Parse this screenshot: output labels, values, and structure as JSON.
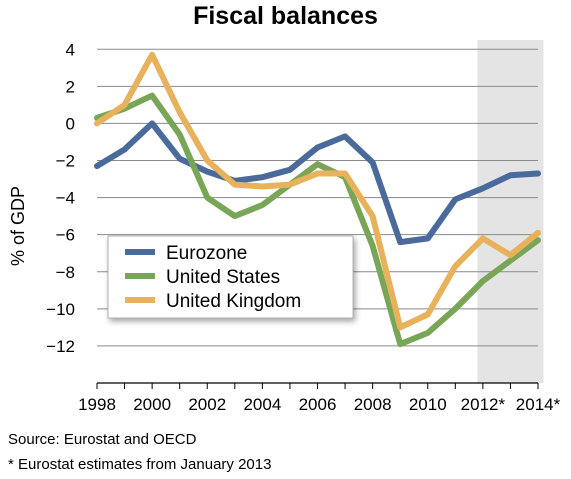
{
  "chart_data": {
    "type": "line",
    "title": "Fiscal balances",
    "ylabel": "% of GDP",
    "xlabel": "",
    "ylim": [
      -14,
      4.5
    ],
    "yticks": [
      4,
      2,
      0,
      -2,
      -4,
      -6,
      -8,
      -10,
      -12
    ],
    "xticks": [
      "1998",
      "2000",
      "2002",
      "2004",
      "2006",
      "2008",
      "2010",
      "2012*",
      "2014*"
    ],
    "x": [
      1998,
      1999,
      2000,
      2001,
      2002,
      2003,
      2004,
      2005,
      2006,
      2007,
      2008,
      2009,
      2010,
      2011,
      2012,
      2013,
      2014
    ],
    "grid": "horizontal",
    "shaded_region": [
      2011.8,
      2014.2
    ],
    "legend_position": "lower-left",
    "series": [
      {
        "name": "Eurozone",
        "color": "#4a6a9c",
        "values": [
          -2.3,
          -1.4,
          0.0,
          -1.9,
          -2.6,
          -3.1,
          -2.9,
          -2.5,
          -1.3,
          -0.7,
          -2.1,
          -6.4,
          -6.2,
          -4.1,
          -3.5,
          -2.8,
          -2.7
        ]
      },
      {
        "name": "United States",
        "color": "#78a656",
        "values": [
          0.3,
          0.8,
          1.5,
          -0.6,
          -4.0,
          -5.0,
          -4.4,
          -3.3,
          -2.2,
          -2.9,
          -6.6,
          -11.9,
          -11.3,
          -10.0,
          -8.5,
          -7.4,
          -6.3
        ]
      },
      {
        "name": "United Kingdom",
        "color": "#e8b25c",
        "values": [
          0.0,
          1.0,
          3.7,
          0.6,
          -2.0,
          -3.3,
          -3.4,
          -3.3,
          -2.7,
          -2.7,
          -5.0,
          -11.0,
          -10.3,
          -7.7,
          -6.2,
          -7.1,
          -5.9
        ]
      }
    ]
  },
  "notes": {
    "source": "Source: Eurostat and OECD",
    "estimate": "* Eurostat estimates from January 2013"
  }
}
